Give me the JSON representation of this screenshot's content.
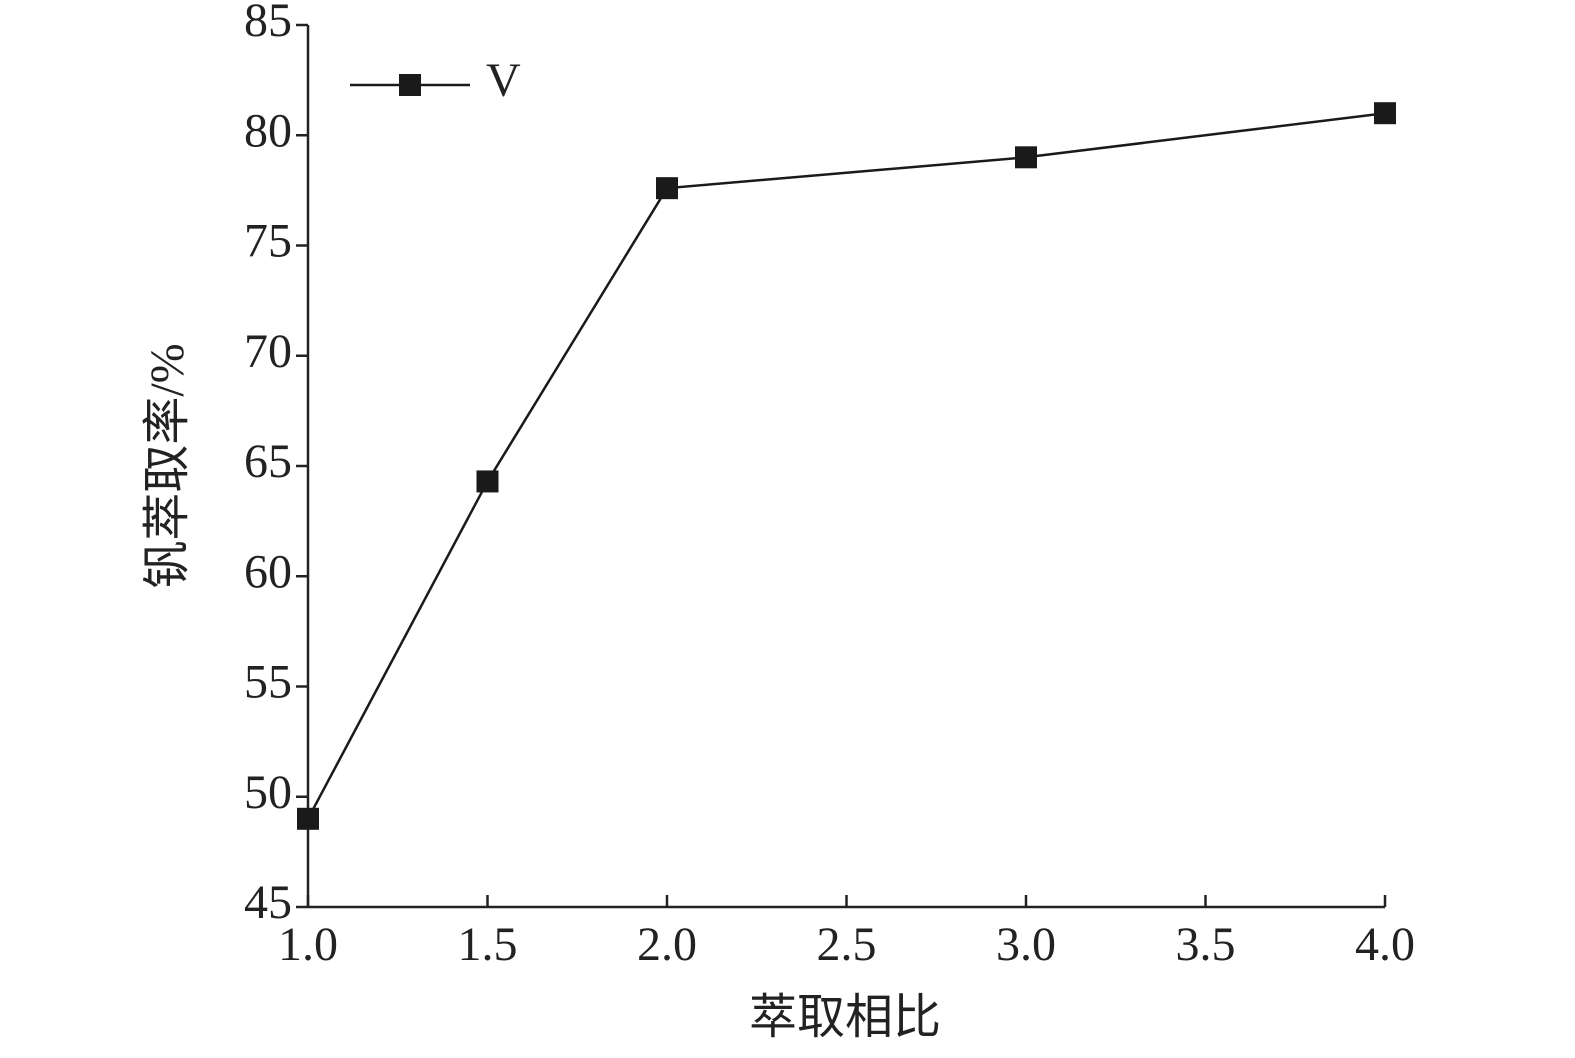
{
  "chart_data": {
    "type": "line",
    "x_label": "萃取相比",
    "y_label": "钒萃取率/%",
    "x": [
      1.0,
      1.5,
      2.0,
      3.0,
      4.0
    ],
    "series": [
      {
        "name": "V",
        "color": "#1a1a1a",
        "marker": "square",
        "values": [
          49,
          64.3,
          77.6,
          79,
          81
        ]
      }
    ],
    "xlim": [
      1,
      4
    ],
    "xticks": [
      {
        "value": 1,
        "label": "1.0"
      },
      1.5,
      {
        "value": 2,
        "label": "2.0"
      },
      2.5,
      {
        "value": 3,
        "label": "3.0"
      },
      3.5,
      {
        "value": 4,
        "label": "4.0"
      }
    ],
    "ylim": [
      45,
      85
    ],
    "yticks": [
      45,
      50,
      55,
      60,
      65,
      70,
      75,
      80,
      85
    ],
    "grid": false,
    "legend": "upper left"
  }
}
